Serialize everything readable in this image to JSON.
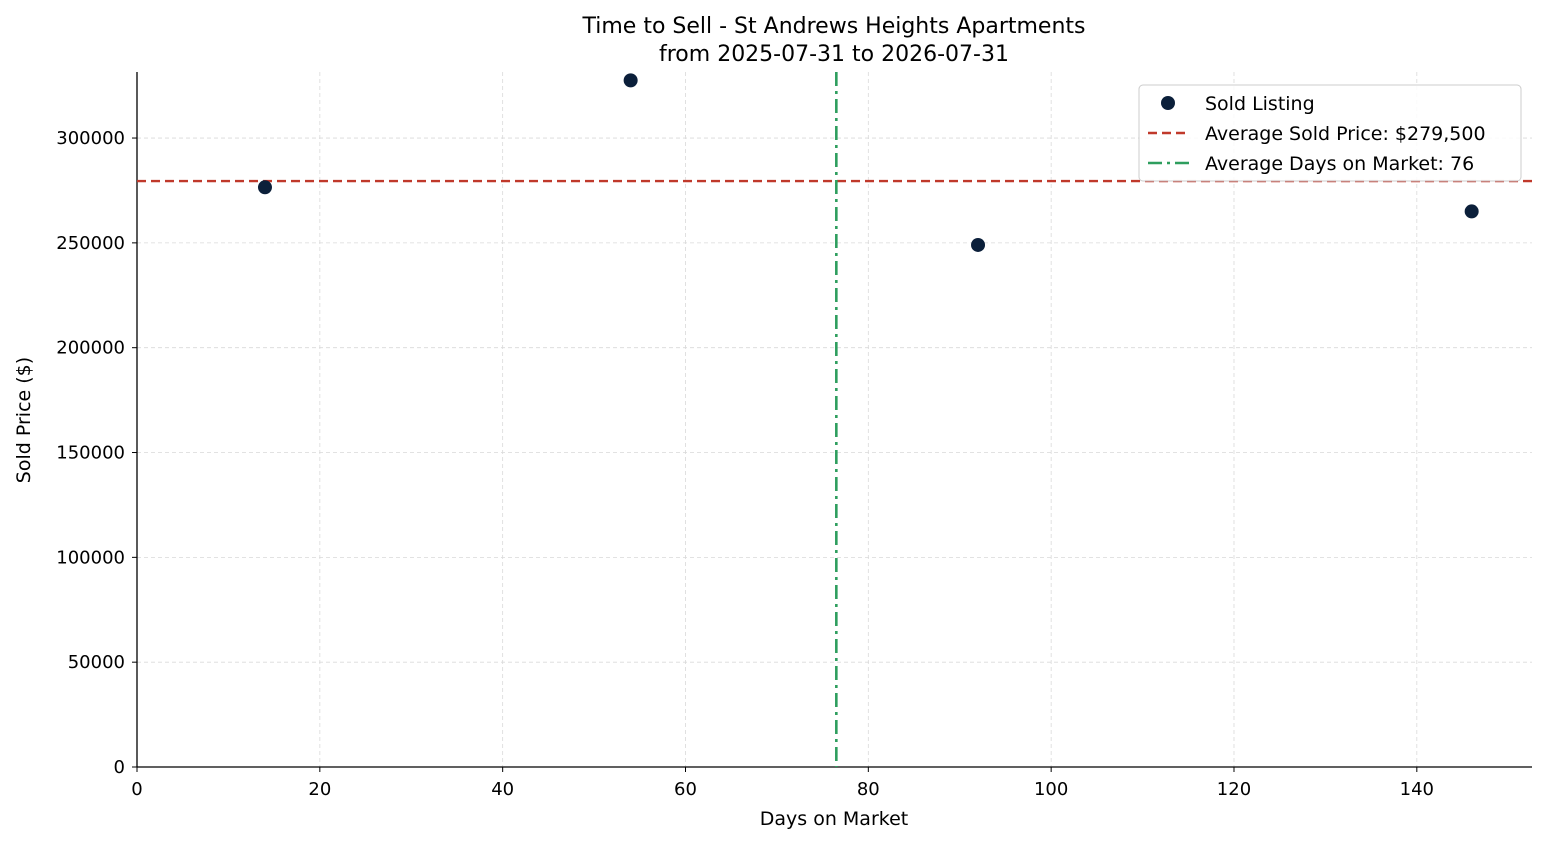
{
  "chart_data": {
    "type": "scatter",
    "title": "Time to Sell - St Andrews Heights Apartments",
    "subtitle": "from 2025-07-31 to 2026-07-31",
    "xlabel": "Days on Market",
    "ylabel": "Sold Price ($)",
    "xlim": [
      0,
      152.6
    ],
    "ylim": [
      0,
      331500
    ],
    "x_ticks": [
      0,
      20,
      40,
      60,
      80,
      100,
      120,
      140
    ],
    "y_ticks": [
      0,
      50000,
      100000,
      150000,
      200000,
      250000,
      300000
    ],
    "grid": true,
    "legend_position": "top-right",
    "series": [
      {
        "name": "Sold Listing",
        "color": "#0b1f3a",
        "points": [
          {
            "x": 14,
            "y": 276500
          },
          {
            "x": 54,
            "y": 327500
          },
          {
            "x": 92,
            "y": 249000
          },
          {
            "x": 146,
            "y": 265000
          }
        ]
      }
    ],
    "reference_lines": [
      {
        "name": "Average Sold Price: $279,500",
        "orientation": "horizontal",
        "value": 279500,
        "color": "#c0392b",
        "style": "dashed"
      },
      {
        "name": "Average Days on Market: 76",
        "orientation": "vertical",
        "value": 76.5,
        "color": "#2e9e5e",
        "style": "dashdot"
      }
    ]
  }
}
